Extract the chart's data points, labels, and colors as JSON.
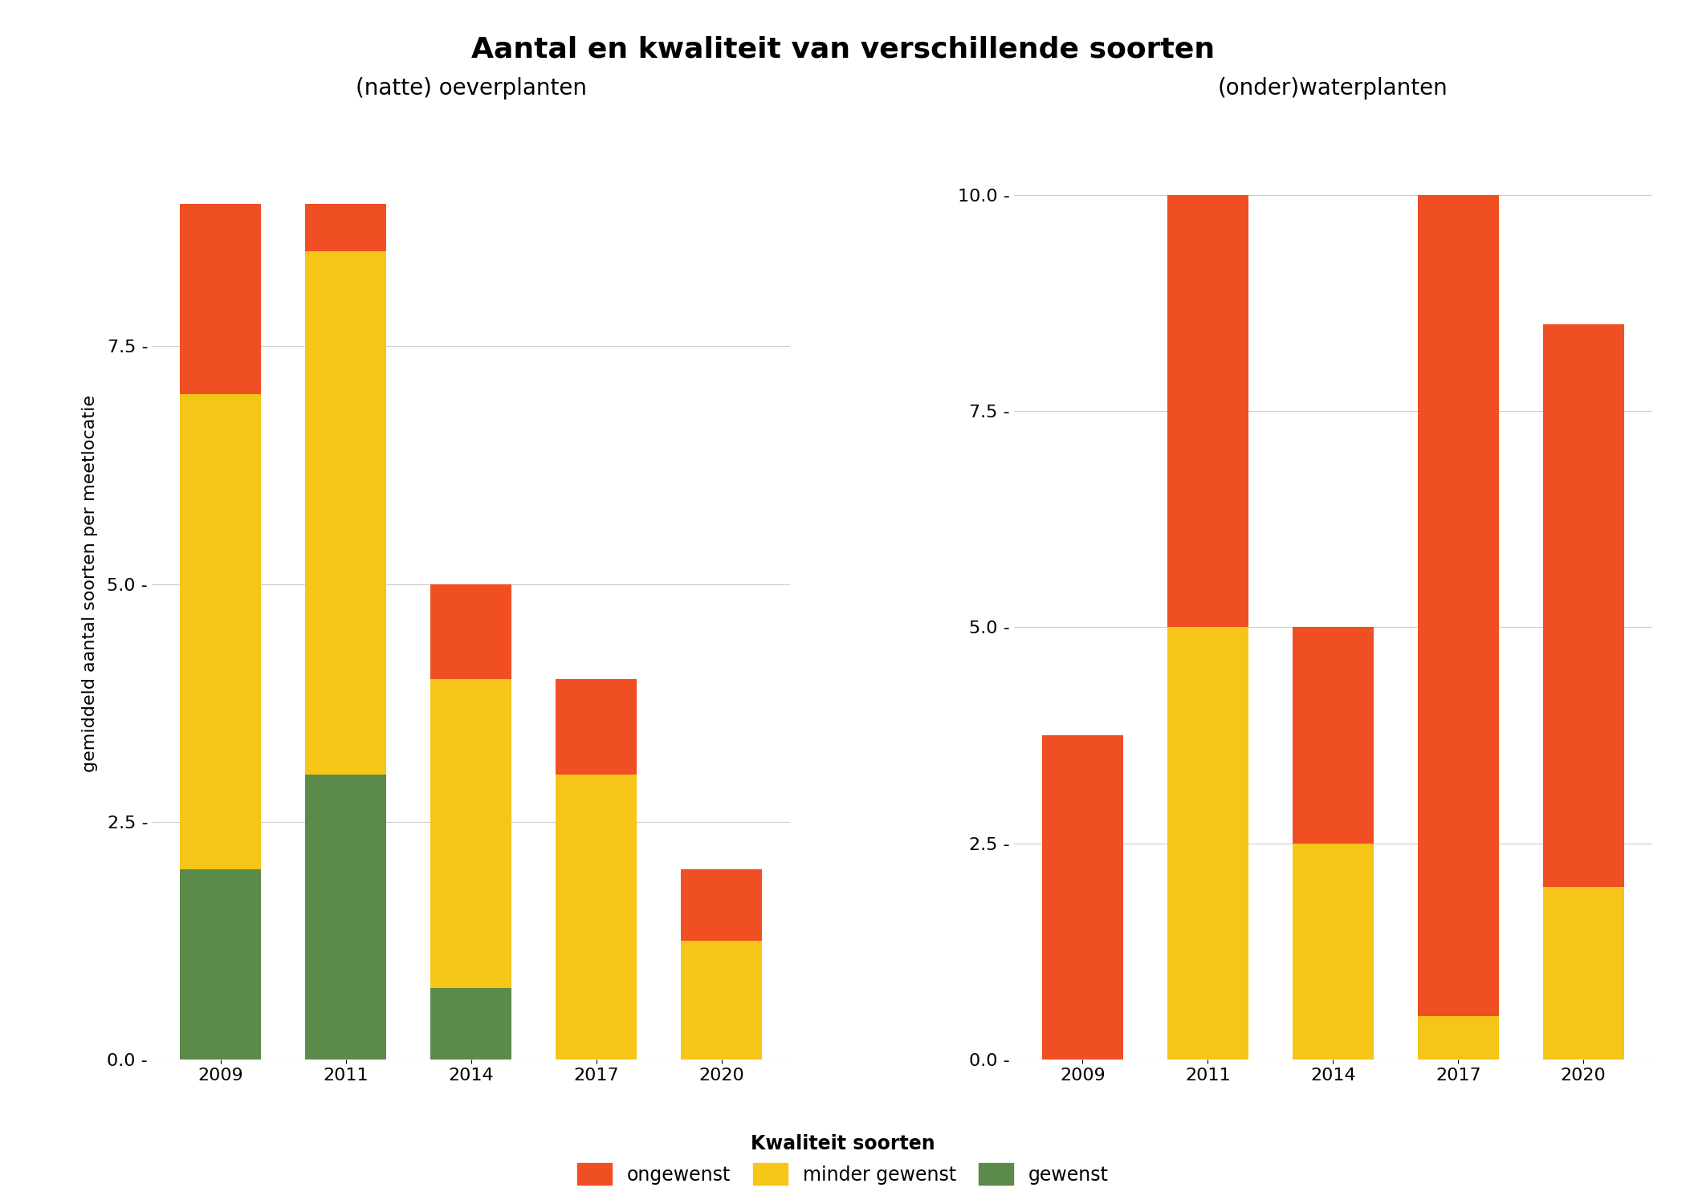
{
  "title": "Aantal en kwaliteit van verschillende soorten",
  "ylabel": "gemiddeld aantal soorten per meetlocatie",
  "left_subtitle": "(natte) oeverplanten",
  "right_subtitle": "(onder)waterplanten",
  "categories": [
    "2009",
    "2011",
    "2014",
    "2017",
    "2020"
  ],
  "left_data": {
    "gewenst": [
      2.0,
      3.0,
      0.75,
      0.0,
      0.0
    ],
    "minder_gewenst": [
      5.0,
      5.5,
      3.25,
      3.0,
      1.25
    ],
    "ongewenst": [
      2.0,
      0.5,
      1.0,
      1.0,
      0.75
    ]
  },
  "right_data": {
    "gewenst": [
      0.0,
      0.0,
      0.0,
      0.0,
      0.0
    ],
    "minder_gewenst": [
      0.0,
      5.0,
      2.5,
      0.5,
      2.0
    ],
    "ongewenst": [
      3.75,
      5.0,
      2.5,
      9.5,
      6.5
    ]
  },
  "left_ylim": [
    0,
    10
  ],
  "right_ylim": [
    0,
    11
  ],
  "left_yticks": [
    0.0,
    2.5,
    5.0,
    7.5
  ],
  "right_yticks": [
    0.0,
    2.5,
    5.0,
    7.5,
    10.0
  ],
  "color_gewenst": "#5c8a4a",
  "color_minder_gewenst": "#f5c518",
  "color_ongewenst": "#f04e23",
  "legend_title": "Kwaliteit soorten",
  "legend_labels": [
    "ongewenst",
    "minder gewenst",
    "gewenst"
  ],
  "bar_width": 0.65,
  "background_color": "#ffffff",
  "grid_color": "#cccccc",
  "title_fontsize": 26,
  "subtitle_fontsize": 20,
  "axis_label_fontsize": 16,
  "tick_fontsize": 16,
  "legend_fontsize": 17
}
